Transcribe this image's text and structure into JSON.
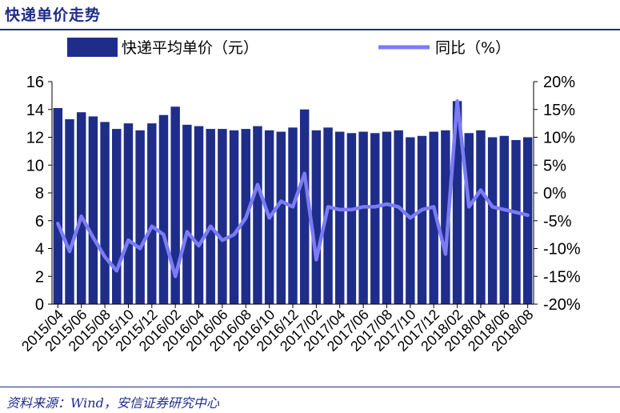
{
  "header": {
    "title": "快递单价走势"
  },
  "footer": {
    "source": "资料来源：Wind，安信证券研究中心"
  },
  "colors": {
    "bar": "#1f2d8a",
    "line": "#7b7cf5",
    "accent": "#1f2d8a"
  },
  "chart_data": {
    "type": "bar+line",
    "categories": [
      "2015/04",
      "2015/05",
      "2015/06",
      "2015/07",
      "2015/08",
      "2015/09",
      "2015/10",
      "2015/11",
      "2015/12",
      "2016/01",
      "2016/02",
      "2016/03",
      "2016/04",
      "2016/05",
      "2016/06",
      "2016/07",
      "2016/08",
      "2016/09",
      "2016/10",
      "2016/11",
      "2016/12",
      "2017/01",
      "2017/02",
      "2017/03",
      "2017/04",
      "2017/05",
      "2017/06",
      "2017/07",
      "2017/08",
      "2017/09",
      "2017/10",
      "2017/11",
      "2017/12",
      "2018/01",
      "2018/02",
      "2018/03",
      "2018/04",
      "2018/05",
      "2018/06",
      "2018/07",
      "2018/08"
    ],
    "x_tick_labels": [
      "2015/04",
      "2015/06",
      "2015/08",
      "2015/10",
      "2015/12",
      "2016/02",
      "2016/04",
      "2016/06",
      "2016/08",
      "2016/10",
      "2016/12",
      "2017/02",
      "2017/04",
      "2017/06",
      "2017/08",
      "2017/10",
      "2017/12",
      "2018/02",
      "2018/04",
      "2018/06",
      "2018/08"
    ],
    "series": [
      {
        "name": "快递平均单价（元）",
        "type": "bar",
        "axis": "left",
        "values": [
          14.1,
          13.3,
          13.8,
          13.5,
          13.1,
          12.6,
          13.0,
          12.5,
          13.0,
          13.6,
          14.2,
          12.9,
          12.8,
          12.6,
          12.6,
          12.5,
          12.6,
          12.8,
          12.5,
          12.4,
          12.7,
          14.0,
          12.5,
          12.7,
          12.4,
          12.3,
          12.4,
          12.3,
          12.4,
          12.5,
          12.0,
          12.1,
          12.4,
          12.5,
          14.6,
          12.3,
          12.5,
          12.0,
          12.1,
          11.8,
          12.0
        ]
      },
      {
        "name": "同比（%）",
        "type": "line",
        "axis": "right",
        "values": [
          -5.5,
          -10.5,
          -4.2,
          -8.0,
          -11.5,
          -14.0,
          -8.5,
          -10.0,
          -6.0,
          -7.5,
          -15.0,
          -7.0,
          -9.5,
          -6.0,
          -8.5,
          -7.5,
          -4.5,
          1.5,
          -4.5,
          -1.5,
          -2.5,
          3.5,
          -12.0,
          -2.5,
          -3.0,
          -3.0,
          -2.5,
          -2.5,
          -2.0,
          -2.5,
          -4.5,
          -3.0,
          -2.5,
          -11.0,
          16.5,
          -2.5,
          0.5,
          -2.5,
          -3.0,
          -3.5,
          -4.0
        ]
      }
    ],
    "y_left": {
      "ylim": [
        0,
        16
      ],
      "ticks": [
        "0",
        "2",
        "4",
        "6",
        "8",
        "10",
        "12",
        "14",
        "16"
      ]
    },
    "y_right": {
      "ylim": [
        -20,
        20
      ],
      "ticks": [
        "-20%",
        "-15%",
        "-10%",
        "-5%",
        "0%",
        "5%",
        "10%",
        "15%",
        "20%"
      ]
    },
    "legend": {
      "placement": "top"
    },
    "grid": false
  }
}
